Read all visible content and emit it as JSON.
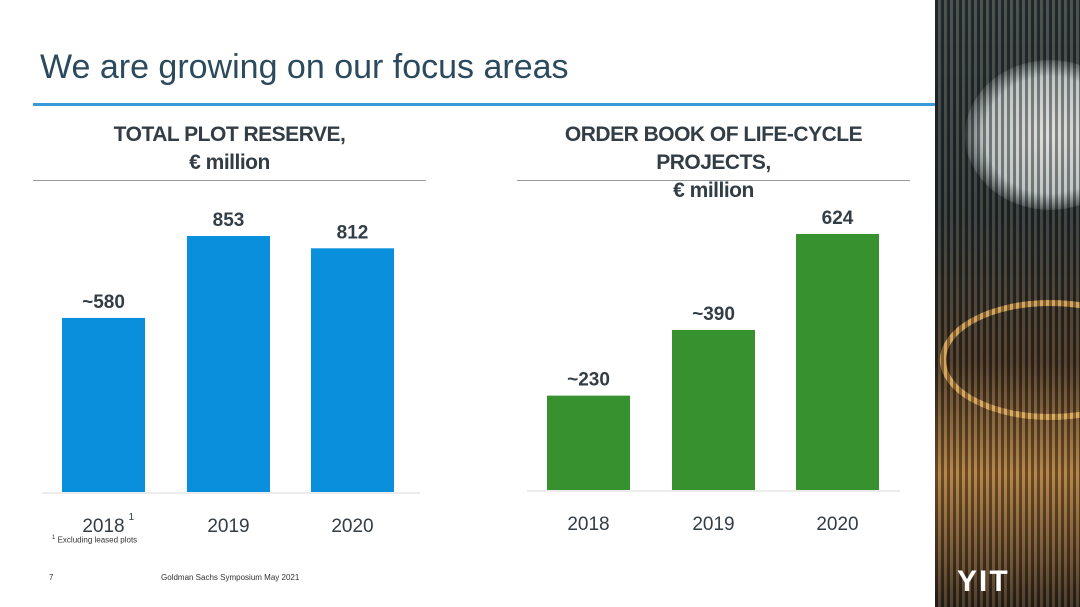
{
  "page": {
    "title": "We are growing on our focus areas",
    "page_number": "7",
    "footer": "Goldman Sachs Symposium May 2021",
    "footnote_marker": "1",
    "footnote_text": "Excluding leased plots",
    "logo_text": "YIT"
  },
  "chart_data": [
    {
      "type": "bar",
      "title_line1": "TOTAL PLOT RESERVE,",
      "title_line2": "€ million",
      "categories": [
        "2018",
        "2019",
        "2020"
      ],
      "category_superscripts": [
        "1",
        "",
        ""
      ],
      "values": [
        580,
        853,
        812
      ],
      "value_labels": [
        "~580",
        "853",
        "812"
      ],
      "color": "#0a8fdc",
      "ylim": [
        0,
        853
      ]
    },
    {
      "type": "bar",
      "title_line1": "ORDER BOOK OF LIFE-CYCLE PROJECTS,",
      "title_line2": "€ million",
      "categories": [
        "2018",
        "2019",
        "2020"
      ],
      "category_superscripts": [
        "",
        "",
        ""
      ],
      "values": [
        230,
        390,
        624
      ],
      "value_labels": [
        "~230",
        "~390",
        "624"
      ],
      "color": "#37912f",
      "ylim": [
        0,
        624
      ]
    }
  ]
}
